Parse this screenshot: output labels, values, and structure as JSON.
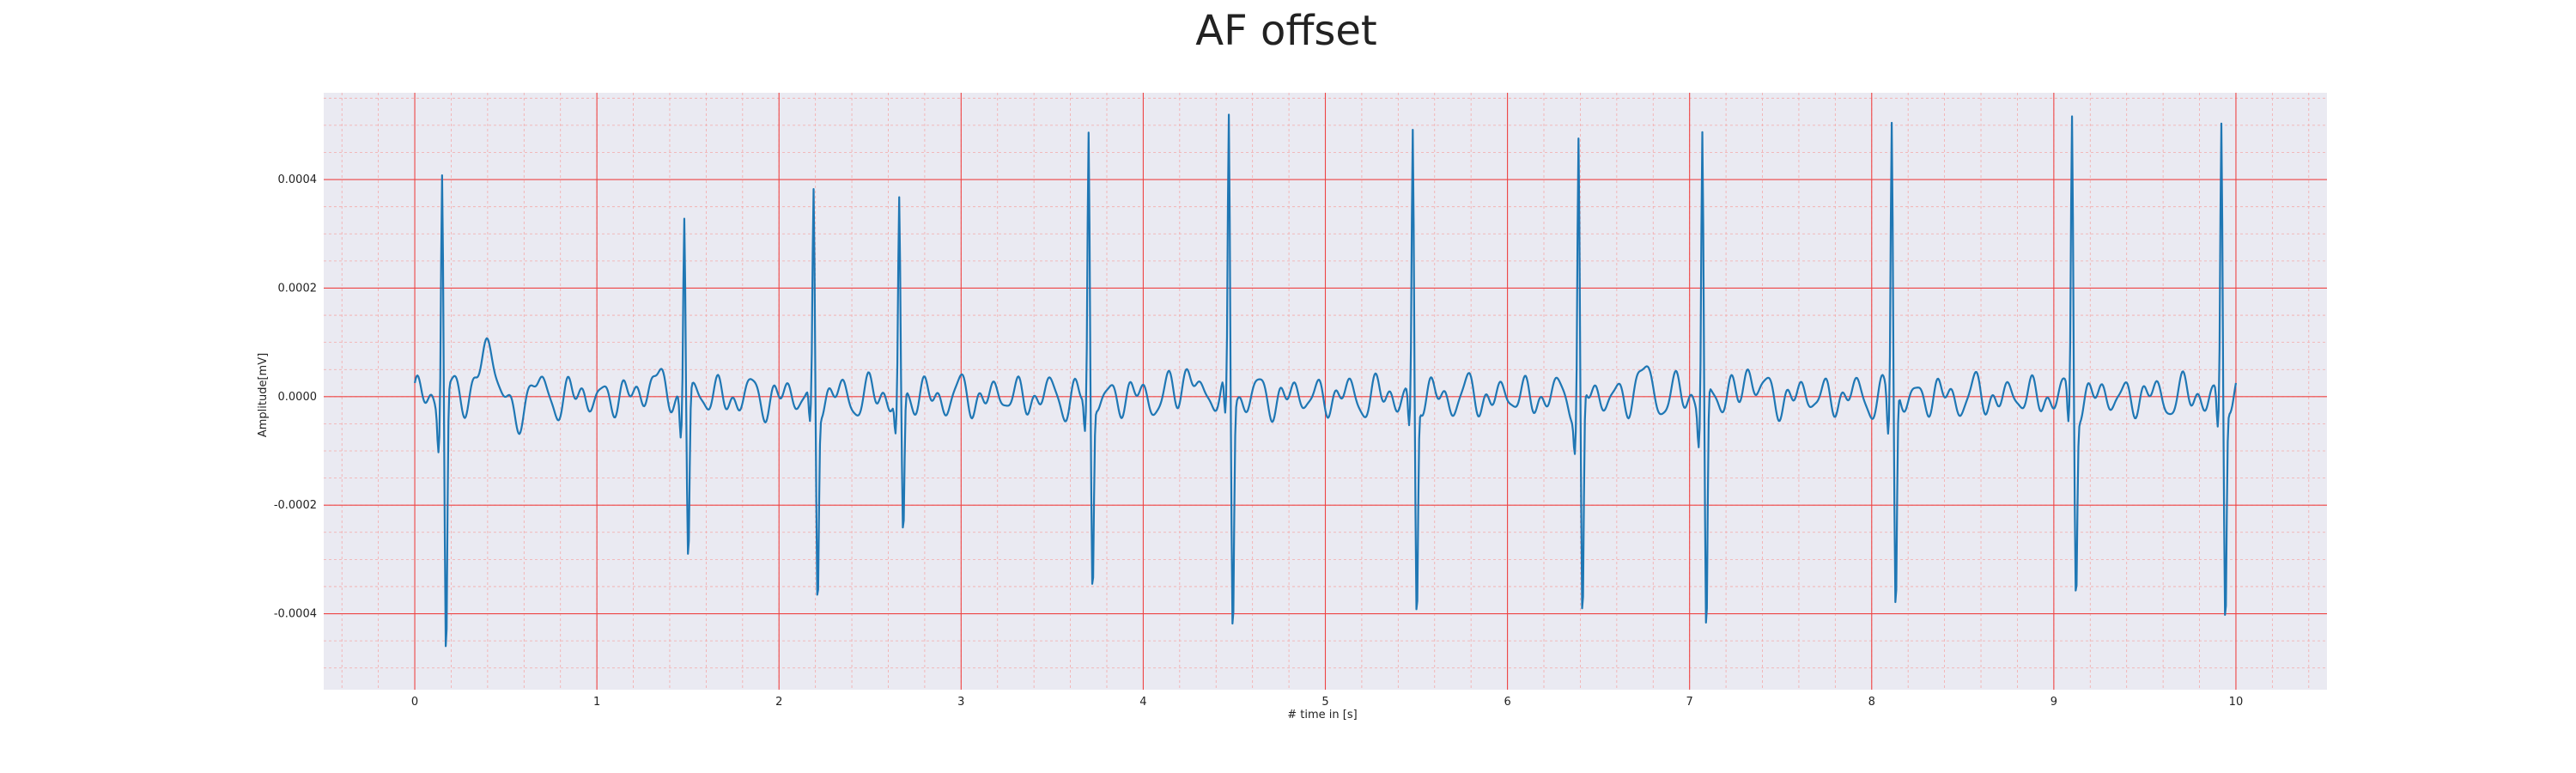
{
  "chart_data": {
    "type": "line",
    "title": "AF offset",
    "xlabel": "# time in [s]",
    "ylabel": "Amplitude[mV]",
    "xlim": [
      -0.5,
      10.5
    ],
    "ylim": [
      -0.00054,
      0.00056
    ],
    "x_ticks": [
      0,
      1,
      2,
      3,
      4,
      5,
      6,
      7,
      8,
      9,
      10
    ],
    "x_tick_labels": [
      "0",
      "1",
      "2",
      "3",
      "4",
      "5",
      "6",
      "7",
      "8",
      "9",
      "10"
    ],
    "y_ticks": [
      -0.0004,
      -0.0002,
      0.0,
      0.0002,
      0.0004
    ],
    "y_tick_labels": [
      "-0.0004",
      "-0.0002",
      "0.0000",
      "0.0002",
      "0.0004"
    ],
    "minor_x_step": 0.2,
    "minor_y_step": 5e-05,
    "grid": true,
    "colors": {
      "background": "#eaeaf2",
      "major_grid": "#ee4444",
      "minor_grid": "#f4a9a9",
      "line": "#1f77b4"
    },
    "beats": [
      {
        "t": 0.15,
        "r": 0.00043,
        "s": -0.00049
      },
      {
        "t": 1.48,
        "r": 0.00035,
        "s": -0.0003
      },
      {
        "t": 2.19,
        "r": 0.00036,
        "s": -0.00037
      },
      {
        "t": 2.66,
        "r": 0.00035,
        "s": -0.00027
      },
      {
        "t": 3.7,
        "r": 0.00047,
        "s": -0.00036
      },
      {
        "t": 4.47,
        "r": 0.00051,
        "s": -0.00042
      },
      {
        "t": 5.48,
        "r": 0.00048,
        "s": -0.00041
      },
      {
        "t": 6.39,
        "r": 0.00047,
        "s": -0.00044
      },
      {
        "t": 7.07,
        "r": 0.00049,
        "s": -0.00046
      },
      {
        "t": 8.11,
        "r": 0.00051,
        "s": -0.00041
      },
      {
        "t": 9.1,
        "r": 0.00051,
        "s": -0.00035
      },
      {
        "t": 9.92,
        "r": 0.0005,
        "s": -0.00041
      }
    ],
    "baseline_features": [
      {
        "t": 0.4,
        "v": 8e-05,
        "w": 0.05
      },
      {
        "t": 0.55,
        "v": -5e-05,
        "w": 0.03
      },
      {
        "t": 0.65,
        "v": 3e-05,
        "w": 0.02
      },
      {
        "t": 1.3,
        "v": 5e-05,
        "w": 0.025
      },
      {
        "t": 4.25,
        "v": 6e-05,
        "w": 0.025
      },
      {
        "t": 6.75,
        "v": 5e-05,
        "w": 0.025
      },
      {
        "t": 7.33,
        "v": 6e-05,
        "w": 0.025
      }
    ],
    "time_range": [
      0.0,
      10.0
    ],
    "sample_step": 0.005
  }
}
